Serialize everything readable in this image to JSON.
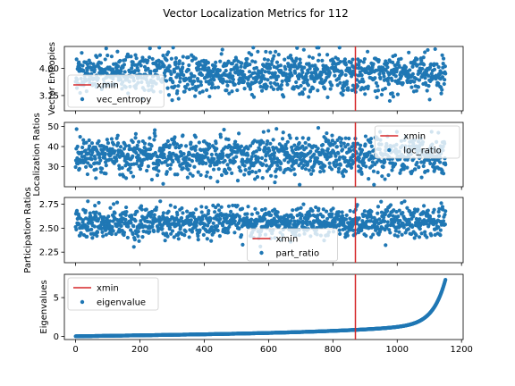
{
  "figure": {
    "title": "Vector Localization Metrics for 112"
  },
  "colors": {
    "points": "#1f77b4",
    "xmin_line": "#d62728"
  },
  "chart_data": [
    {
      "type": "scatter",
      "ylabel": "Vector Entropies",
      "xlabel": "",
      "xlim": [
        -35,
        1205
      ],
      "ylim": [
        3.61,
        4.2
      ],
      "yticks": [
        3.75,
        4.0
      ],
      "ytick_labels": [
        "3.75",
        "4.00"
      ],
      "xmin_line": 870,
      "legend_position": "lower left",
      "legend_entries": [
        {
          "label": "xmin",
          "kind": "line"
        },
        {
          "label": "vec_entropy",
          "kind": "marker"
        }
      ],
      "series": [
        {
          "name": "vec_entropy",
          "n_points": 1150,
          "x_range": [
            0,
            1150
          ],
          "center": 3.95,
          "spread": 0.09,
          "min": 3.62,
          "max": 4.19
        }
      ]
    },
    {
      "type": "scatter",
      "ylabel": "Localization Ratios",
      "xlabel": "",
      "xlim": [
        -35,
        1205
      ],
      "ylim": [
        20,
        52
      ],
      "yticks": [
        30,
        40,
        50
      ],
      "ytick_labels": [
        "30",
        "40",
        "50"
      ],
      "xmin_line": 870,
      "legend_position": "upper right",
      "legend_entries": [
        {
          "label": "xmin",
          "kind": "line"
        },
        {
          "label": "loc_ratio",
          "kind": "marker"
        }
      ],
      "series": [
        {
          "name": "loc_ratio",
          "n_points": 1150,
          "x_range": [
            0,
            1150
          ],
          "center": 35.5,
          "spread": 5.0,
          "min": 21,
          "max": 51
        }
      ]
    },
    {
      "type": "scatter",
      "ylabel": "Participation Ratios",
      "xlabel": "",
      "xlim": [
        -35,
        1205
      ],
      "ylim": [
        2.14,
        2.82
      ],
      "yticks": [
        2.25,
        2.5,
        2.75
      ],
      "ytick_labels": [
        "2.25",
        "2.50",
        "2.75"
      ],
      "xmin_line": 870,
      "legend_position": "lower center",
      "legend_entries": [
        {
          "label": "xmin",
          "kind": "line"
        },
        {
          "label": "part_ratio",
          "kind": "marker"
        }
      ],
      "series": [
        {
          "name": "part_ratio",
          "n_points": 1150,
          "x_range": [
            0,
            1150
          ],
          "center": 2.56,
          "spread": 0.08,
          "min": 2.17,
          "max": 2.78
        }
      ]
    },
    {
      "type": "scatter",
      "ylabel": "Eigenvalues",
      "xlabel": "",
      "xlim": [
        -35,
        1205
      ],
      "ylim": [
        -0.4,
        8.0
      ],
      "yticks": [
        0,
        5
      ],
      "ytick_labels": [
        "0",
        "5"
      ],
      "xticks": [
        0,
        200,
        400,
        600,
        800,
        1000,
        1200
      ],
      "xtick_labels": [
        "0",
        "200",
        "400",
        "600",
        "800",
        "1000",
        "1200"
      ],
      "xmin_line": 870,
      "legend_position": "upper left",
      "legend_entries": [
        {
          "label": "xmin",
          "kind": "line"
        },
        {
          "label": "eigenvalue",
          "kind": "marker"
        }
      ],
      "series": [
        {
          "name": "eigenvalue",
          "n_points": 1150,
          "x_range": [
            0,
            1150
          ],
          "shape": "sorted ascending",
          "min": 0.0,
          "max": 7.3
        }
      ]
    }
  ]
}
